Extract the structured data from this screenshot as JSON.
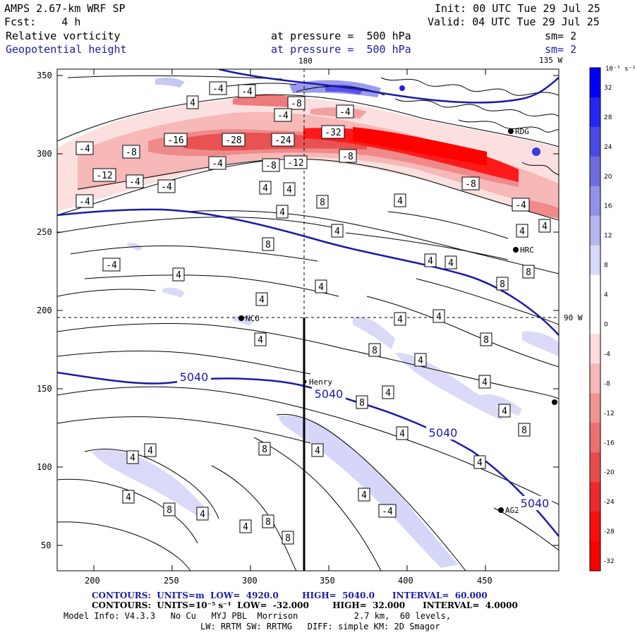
{
  "header": {
    "model": "AMPS 2.67-km WRF SP",
    "fcst": "Fcst:    4 h",
    "init": "Init: 00 UTC Tue 29 Jul 25",
    "valid": "Valid: 04 UTC Tue 29 Jul 25",
    "field1": "Relative vorticity",
    "field1_level": "at pressure =  500 hPa",
    "field1_sm": "sm= 2",
    "field2": "Geopotential height",
    "field2_level": "at pressure =  500 hPa",
    "field2_sm": "sm= 2"
  },
  "map": {
    "x_ticks": [
      "200",
      "250",
      "300",
      "350",
      "400",
      "450"
    ],
    "y_ticks": [
      "350",
      "300",
      "250",
      "200",
      "150",
      "100",
      "50"
    ],
    "meridian_180": "180",
    "meridian_135w": "135 W",
    "meridian_90w": "90 W",
    "stations": [
      "NCO",
      "HRC",
      "RDG",
      "AG2",
      "Henry"
    ],
    "height_labels": [
      "5040",
      "5040",
      "5040",
      "5040"
    ],
    "vorticity_labels": [
      "-4",
      "-4",
      "4",
      "-8",
      "-4",
      "-4",
      "-16",
      "-28",
      "-24",
      "-32",
      "-4",
      "-8",
      "-8",
      "-12",
      "-4",
      "-4",
      "-8",
      "-12",
      "-4",
      "-4",
      "4",
      "8",
      "-8",
      "4",
      "-4",
      "4",
      "4",
      "4",
      "4",
      "8",
      "4",
      "-4",
      "4",
      "4",
      "4",
      "8",
      "4",
      "8",
      "4",
      "4",
      "4",
      "4",
      "8",
      "8",
      "4",
      "4",
      "4",
      "8",
      "4",
      "8",
      "4",
      "4",
      "8",
      "4",
      "4",
      "4",
      "4",
      "8",
      "4",
      "4",
      "8",
      "8",
      "4",
      "-4"
    ]
  },
  "colorbar": {
    "unit": "10⁻⁵ s⁻¹",
    "labels": [
      "32",
      "28",
      "24",
      "20",
      "16",
      "12",
      "8",
      "4",
      "0",
      "-4",
      "-8",
      "-12",
      "-16",
      "-20",
      "-24",
      "-28",
      "-32"
    ],
    "colors": [
      "#0000ff",
      "#2626f0",
      "#4a4ae6",
      "#6e6ee0",
      "#9292e8",
      "#b6b6f0",
      "#d8d8f8",
      "#ffffff",
      "#ffffff",
      "#fcdcdc",
      "#f8b8b8",
      "#f09494",
      "#ec7070",
      "#e84c4c",
      "#ee2a2a",
      "#f81010",
      "#ff0000"
    ]
  },
  "footer": {
    "line1": "CONTOURS:  UNITS=m  LOW=  4920.0        HIGH=  5040.0      INTERVAL=  60.000",
    "line2": "CONTOURS:  UNITS=10⁻⁵ s⁻¹  LOW=  -32.000        HIGH=  32.000      INTERVAL=  4.0000",
    "line3": "Model Info: V4.3.3   No Cu   MYJ PBL  Morrison           2.7 km,  60 levels,",
    "line4": "LW: RRTM SW: RRTMG   DIFF: simple KM: 2D Smagor"
  },
  "colors": {
    "height": "#1a1aa8",
    "negative": "#ff0000",
    "positive": "#0000ff"
  }
}
